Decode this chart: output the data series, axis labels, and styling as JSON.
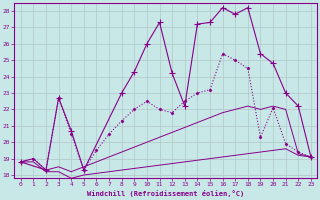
{
  "xlabel": "Windchill (Refroidissement éolien,°C)",
  "xlim": [
    -0.5,
    23.5
  ],
  "ylim": [
    17.8,
    28.5
  ],
  "yticks": [
    18,
    19,
    20,
    21,
    22,
    23,
    24,
    25,
    26,
    27,
    28
  ],
  "xticks": [
    0,
    1,
    2,
    3,
    4,
    5,
    6,
    7,
    8,
    9,
    10,
    11,
    12,
    13,
    14,
    15,
    16,
    17,
    18,
    19,
    20,
    21,
    22,
    23
  ],
  "background_color": "#c8e8e8",
  "line_color": "#880088",
  "grid_color": "#b0c8c8",
  "line1_x": [
    0,
    1,
    2,
    3,
    4,
    5,
    6,
    7,
    8,
    9,
    10,
    11,
    12,
    13,
    14,
    15,
    16,
    17,
    18,
    19,
    20,
    21,
    22,
    23
  ],
  "line1_y": [
    18.8,
    18.8,
    18.2,
    18.2,
    17.8,
    18.0,
    18.1,
    18.2,
    18.3,
    18.4,
    18.5,
    18.6,
    18.7,
    18.8,
    18.9,
    19.0,
    19.1,
    19.2,
    19.3,
    19.4,
    19.5,
    19.6,
    19.2,
    19.1
  ],
  "line2_x": [
    0,
    1,
    2,
    3,
    4,
    5,
    6,
    7,
    8,
    9,
    10,
    11,
    12,
    13,
    14,
    15,
    16,
    17,
    18,
    19,
    20,
    21,
    22,
    23
  ],
  "line2_y": [
    18.8,
    19.0,
    18.3,
    18.5,
    18.2,
    18.5,
    18.8,
    19.1,
    19.4,
    19.7,
    20.0,
    20.3,
    20.6,
    20.9,
    21.2,
    21.5,
    21.8,
    22.0,
    22.2,
    22.0,
    22.2,
    22.0,
    19.3,
    19.1
  ],
  "line3_x": [
    0,
    2,
    3,
    4,
    5,
    8,
    9,
    10,
    11,
    12,
    13,
    14,
    15,
    16,
    17,
    18,
    19,
    20,
    21,
    22,
    23
  ],
  "line3_y": [
    18.8,
    18.3,
    22.7,
    20.7,
    18.3,
    23.0,
    24.3,
    26.0,
    27.3,
    24.2,
    22.2,
    27.2,
    27.3,
    28.2,
    27.8,
    28.2,
    25.4,
    24.8,
    23.0,
    22.2,
    19.1
  ],
  "line4_x": [
    0,
    1,
    2,
    3,
    4,
    5,
    6,
    7,
    8,
    9,
    10,
    11,
    12,
    13,
    14,
    15,
    16,
    17,
    18,
    19,
    20,
    21,
    22,
    23
  ],
  "line4_y": [
    18.8,
    19.0,
    18.3,
    22.7,
    20.5,
    18.3,
    19.5,
    20.5,
    21.3,
    22.0,
    22.5,
    22.0,
    21.8,
    22.5,
    23.0,
    23.2,
    25.4,
    25.0,
    24.5,
    20.3,
    22.1,
    19.9,
    19.4,
    19.1
  ]
}
